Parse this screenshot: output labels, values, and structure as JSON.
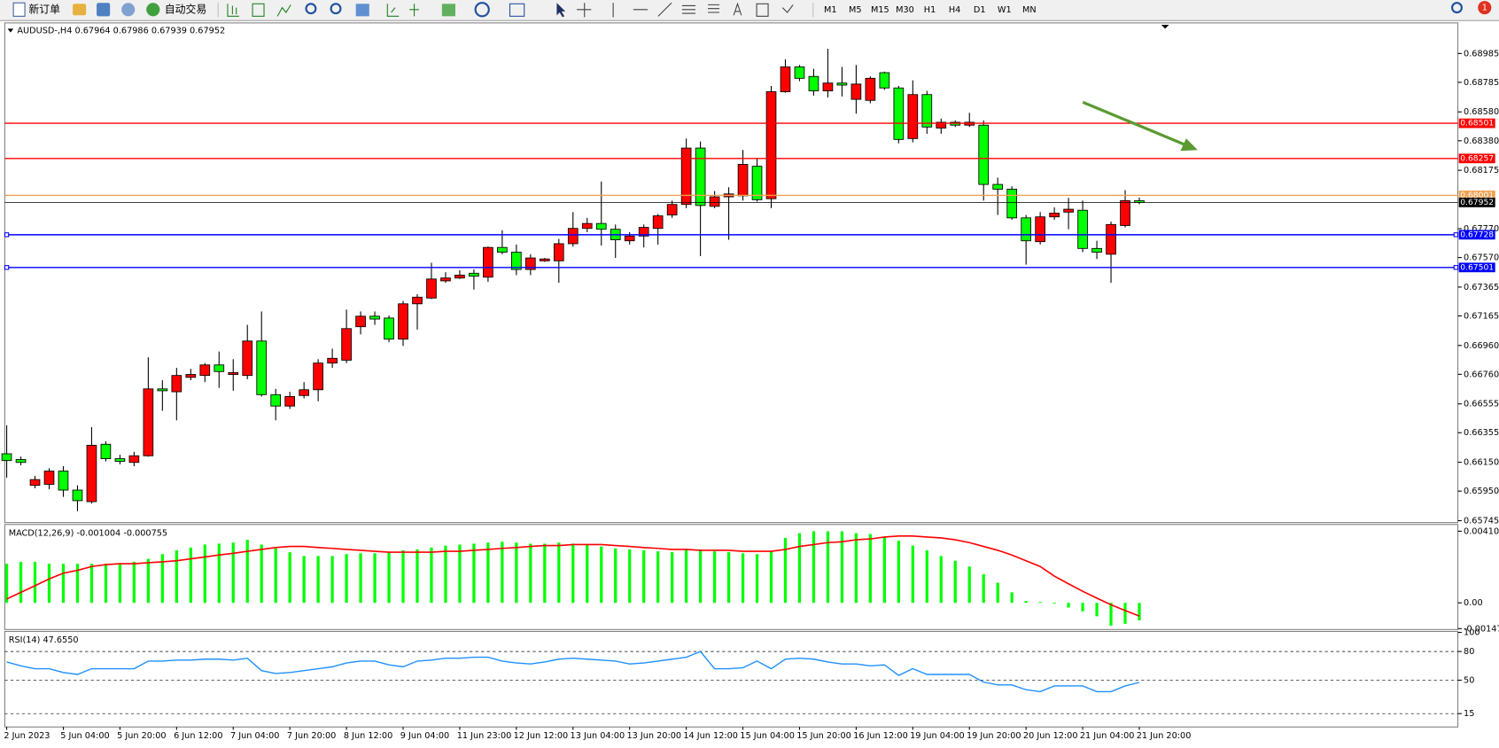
{
  "toolbar": {
    "new_order": "新订单",
    "auto_trade": "自动交易",
    "timeframes": [
      "M1",
      "M5",
      "M15",
      "M30",
      "H1",
      "H4",
      "D1",
      "W1",
      "MN"
    ],
    "notifications": 1
  },
  "chart_data": [
    {
      "type": "candlestick",
      "title": "AUDUSD-,H4",
      "categories": [
        "2 Jun 2023",
        null,
        null,
        null,
        "5 Jun 04:00",
        null,
        null,
        null,
        "5 Jun 20:00",
        null,
        null,
        null,
        "6 Jun 12:00",
        null,
        null,
        null,
        "7 Jun 04:00",
        null,
        null,
        null,
        "7 Jun 20:00",
        null,
        null,
        null,
        "8 Jun 12:00",
        null,
        null,
        null,
        "9 Jun 04:00",
        null,
        null,
        null,
        "11 Jun 23:00",
        null,
        null,
        null,
        "12 Jun 12:00",
        null,
        null,
        null,
        "13 Jun 04:00",
        null,
        null,
        null,
        "13 Jun 20:00",
        null,
        null,
        null,
        "14 Jun 12:00",
        null,
        null,
        null,
        "15 Jun 04:00",
        null,
        null,
        null,
        "15 Jun 20:00",
        null,
        null,
        null,
        "16 Jun 12:00",
        null,
        null,
        null,
        "19 Jun 04:00",
        null,
        null,
        null,
        "19 Jun 20:00",
        null,
        null,
        null,
        "20 Jun 12:00",
        null,
        null,
        null,
        "21 Jun 04:00",
        null,
        null,
        null,
        "21 Jun 20:00"
      ],
      "open": [
        0.66209,
        0.66169,
        0.6599,
        0.65997,
        0.66089,
        0.65957,
        0.65877,
        0.66275,
        0.66175,
        0.66149,
        0.66195,
        0.66659,
        0.66639,
        0.66739,
        0.66752,
        0.66825,
        0.66759,
        0.66752,
        0.66991,
        0.66619,
        0.6654,
        0.66613,
        0.66653,
        0.66838,
        0.66858,
        0.6709,
        0.67163,
        0.6715,
        0.67004,
        0.67249,
        0.67289,
        0.67408,
        0.67428,
        0.67461,
        0.67434,
        0.6764,
        0.67607,
        0.67487,
        0.67547,
        0.67547,
        0.67666,
        0.67772,
        0.67806,
        0.67766,
        0.67686,
        0.67719,
        0.67772,
        0.67865,
        0.67938,
        0.68329,
        0.67925,
        0.67991,
        0.67998,
        0.68203,
        0.67978,
        0.6872,
        0.68892,
        0.68826,
        0.68726,
        0.6878,
        0.68667,
        0.6866,
        0.68852,
        0.68746,
        0.68395,
        0.687,
        0.68468,
        0.68508,
        0.68488,
        0.68488,
        0.68077,
        0.68044,
        0.67845,
        0.6768,
        0.67852,
        0.67885,
        0.67898,
        0.67633,
        0.67593,
        0.67792,
        0.67964
      ],
      "high": [
        0.66407,
        0.66189,
        0.66056,
        0.66109,
        0.66123,
        0.6599,
        0.66394,
        0.66295,
        0.66202,
        0.66222,
        0.66878,
        0.66719,
        0.66805,
        0.66798,
        0.66838,
        0.66918,
        0.66865,
        0.67103,
        0.67196,
        0.66659,
        0.66639,
        0.66706,
        0.66865,
        0.66938,
        0.67209,
        0.67196,
        0.67196,
        0.67169,
        0.67269,
        0.67315,
        0.67534,
        0.67468,
        0.67481,
        0.67487,
        0.67646,
        0.67759,
        0.6766,
        0.67593,
        0.67567,
        0.67699,
        0.67885,
        0.67845,
        0.68097,
        0.67799,
        0.67746,
        0.67799,
        0.67872,
        0.67965,
        0.68395,
        0.68375,
        0.68031,
        0.68057,
        0.68316,
        0.68256,
        0.6876,
        0.68945,
        0.68905,
        0.68879,
        0.69018,
        0.68892,
        0.68905,
        0.68826,
        0.68859,
        0.6876,
        0.68799,
        0.68726,
        0.68534,
        0.68521,
        0.68574,
        0.68521,
        0.68124,
        0.68064,
        0.67865,
        0.67885,
        0.67918,
        0.67984,
        0.67965,
        0.67686,
        0.67819,
        0.68037,
        0.67986
      ],
      "low": [
        0.66043,
        0.66129,
        0.6597,
        0.65963,
        0.6591,
        0.65811,
        0.65864,
        0.66156,
        0.66136,
        0.66123,
        0.66189,
        0.66507,
        0.66441,
        0.66719,
        0.66706,
        0.66666,
        0.66646,
        0.66726,
        0.66606,
        0.66441,
        0.6652,
        0.66593,
        0.66573,
        0.66805,
        0.66838,
        0.67037,
        0.67103,
        0.66984,
        0.66957,
        0.6707,
        0.67282,
        0.67395,
        0.67421,
        0.67348,
        0.67401,
        0.67593,
        0.67448,
        0.67448,
        0.6754,
        0.67395,
        0.67646,
        0.67746,
        0.67653,
        0.67567,
        0.6766,
        0.6764,
        0.6766,
        0.67845,
        0.67912,
        0.6758,
        0.67912,
        0.67693,
        0.67965,
        0.67958,
        0.67912,
        0.68713,
        0.68793,
        0.68693,
        0.6868,
        0.68687,
        0.68568,
        0.6864,
        0.68733,
        0.68362,
        0.68369,
        0.68428,
        0.68428,
        0.68475,
        0.68475,
        0.67965,
        0.67865,
        0.67832,
        0.67521,
        0.6766,
        0.67832,
        0.67766,
        0.67607,
        0.6756,
        0.67395,
        0.67779,
        0.67939
      ],
      "close": [
        0.66162,
        0.66149,
        0.6603,
        0.66089,
        0.65957,
        0.65884,
        0.66268,
        0.66175,
        0.66156,
        0.66195,
        0.66659,
        0.66646,
        0.66752,
        0.66759,
        0.66825,
        0.66779,
        0.66772,
        0.66991,
        0.66619,
        0.6654,
        0.66606,
        0.66653,
        0.66838,
        0.66871,
        0.67077,
        0.67163,
        0.67143,
        0.67004,
        0.67249,
        0.67295,
        0.67421,
        0.67428,
        0.67448,
        0.67441,
        0.6764,
        0.67607,
        0.67487,
        0.67567,
        0.6756,
        0.67666,
        0.67772,
        0.67806,
        0.67766,
        0.67693,
        0.67719,
        0.67779,
        0.67859,
        0.67938,
        0.68329,
        0.67931,
        0.67991,
        0.68011,
        0.68216,
        0.67971,
        0.6872,
        0.68892,
        0.68813,
        0.68726,
        0.6878,
        0.68766,
        0.68773,
        0.68813,
        0.68746,
        0.68389,
        0.687,
        0.68475,
        0.68508,
        0.68488,
        0.68508,
        0.68077,
        0.68044,
        0.67845,
        0.67686,
        0.67852,
        0.67878,
        0.67905,
        0.67633,
        0.67607,
        0.67799,
        0.67965,
        0.67952
      ],
      "up_color": "#ff0000",
      "down_color": "#00ff00",
      "ylim": [
        0.65732,
        0.69197
      ],
      "yticks": [
        0.68985,
        0.68785,
        {
          "value": 0.6858,
          "label": "0.68580"
        },
        {
          "value": 0.6838,
          "label": "0.68380"
        },
        0.68175,
        {
          "value": 0.6777,
          "label": "0.67770"
        },
        {
          "value": 0.6757,
          "label": "0.67570"
        },
        0.67365,
        0.67165,
        {
          "value": 0.6696,
          "label": "0.66960"
        },
        {
          "value": 0.6676,
          "label": "0.66760"
        },
        0.66555,
        0.66355,
        {
          "value": 0.6615,
          "label": "0.66150"
        },
        {
          "value": 0.6595,
          "label": "0.65950"
        },
        0.65745
      ],
      "levels": [
        {
          "value": 0.68501,
          "color": "#ff0000"
        },
        {
          "value": 0.68257,
          "color": "#ff0000"
        },
        {
          "value": 0.68001,
          "color": "#f0a050"
        },
        {
          "value": 0.67728,
          "color": "#0000ff"
        },
        {
          "value": 0.67501,
          "color": "#0000ff"
        }
      ],
      "last_price_color": "#000000"
    },
    {
      "type": "macd",
      "title": "MACD(12,26,9)",
      "histogram_color": "#00ff00",
      "histogram": [
        0.00224,
        0.00235,
        0.00235,
        0.00224,
        0.00224,
        0.00224,
        0.00224,
        0.00224,
        0.00224,
        0.00235,
        0.00252,
        0.00279,
        0.00301,
        0.00317,
        0.00334,
        0.00339,
        0.00345,
        0.00361,
        0.00334,
        0.00312,
        0.0029,
        0.00268,
        0.00268,
        0.00268,
        0.00279,
        0.00284,
        0.00284,
        0.0029,
        0.00301,
        0.00306,
        0.00317,
        0.00328,
        0.00334,
        0.00339,
        0.00345,
        0.0035,
        0.00345,
        0.00339,
        0.00339,
        0.00345,
        0.00339,
        0.00334,
        0.00323,
        0.00312,
        0.00306,
        0.00301,
        0.00295,
        0.0029,
        0.00306,
        0.00306,
        0.00295,
        0.0029,
        0.00284,
        0.00279,
        0.00295,
        0.00372,
        0.00399,
        0.0041,
        0.0041,
        0.0041,
        0.00399,
        0.00394,
        0.00377,
        0.00356,
        0.00328,
        0.00301,
        0.00268,
        0.00241,
        0.00208,
        0.00164,
        0.00115,
        0.0006,
        0.00011,
        5e-05,
        -5e-05,
        -0.00027,
        -0.00049,
        -0.00077,
        -0.00131,
        -0.0012,
        -0.001004
      ],
      "signal_color": "#ff0000",
      "signal": [
        0.00022,
        0.0006,
        0.00098,
        0.00137,
        0.0017,
        0.00186,
        0.00208,
        0.00219,
        0.00224,
        0.00224,
        0.0023,
        0.00235,
        0.00241,
        0.00252,
        0.00263,
        0.00274,
        0.00284,
        0.00295,
        0.00306,
        0.00317,
        0.00323,
        0.00323,
        0.00317,
        0.00312,
        0.00306,
        0.00301,
        0.00295,
        0.0029,
        0.0029,
        0.0029,
        0.0029,
        0.00295,
        0.00295,
        0.00301,
        0.00306,
        0.00312,
        0.00317,
        0.00323,
        0.00328,
        0.00328,
        0.00334,
        0.00334,
        0.00334,
        0.00328,
        0.00323,
        0.00317,
        0.00312,
        0.00306,
        0.00306,
        0.00301,
        0.00301,
        0.00301,
        0.00295,
        0.00295,
        0.00295,
        0.00306,
        0.00323,
        0.00334,
        0.00345,
        0.0035,
        0.00361,
        0.00366,
        0.00377,
        0.00383,
        0.00383,
        0.00377,
        0.00372,
        0.00361,
        0.00345,
        0.00323,
        0.00301,
        0.00274,
        0.00241,
        0.00208,
        0.00153,
        0.00109,
        0.00066,
        0.00027,
        -0.00011,
        -0.00044,
        -0.000755
      ],
      "ylim": [
        -0.00153,
        0.00449
      ],
      "yticks": [
        0.004103,
        {
          "value": 0,
          "label": "0.00"
        },
        -0.001477
      ]
    },
    {
      "type": "line",
      "title": "RSI(14)",
      "color": "#1e90ff",
      "values": [
        69,
        65,
        62,
        62,
        58,
        56,
        62,
        62,
        62,
        62,
        70,
        70,
        71,
        71,
        72,
        72,
        71,
        73,
        60,
        57,
        58,
        60,
        62,
        64,
        68,
        70,
        70,
        66,
        64,
        70,
        71,
        73,
        73,
        74,
        74,
        70,
        68,
        67,
        69,
        72,
        73,
        72,
        71,
        70,
        67,
        68,
        70,
        72,
        74,
        80,
        62,
        62,
        63,
        70,
        62,
        72,
        73,
        72,
        69,
        67,
        67,
        65,
        66,
        55,
        62,
        56,
        56,
        56,
        56,
        48,
        45,
        45,
        40,
        38,
        44,
        44,
        44,
        38,
        38,
        44,
        47.655
      ],
      "value_labels": [
        null,
        null,
        null,
        null,
        null,
        null,
        null,
        null,
        null,
        null,
        null,
        null,
        null,
        null,
        null,
        null,
        null,
        null,
        null,
        null,
        null,
        null,
        null,
        null,
        null,
        null,
        null,
        null,
        null,
        null,
        null,
        null,
        null,
        null,
        null,
        null,
        null,
        null,
        null,
        null,
        null,
        null,
        null,
        null,
        null,
        null,
        null,
        null,
        null,
        null,
        null,
        null,
        null,
        null,
        null,
        null,
        null,
        null,
        null,
        null,
        null,
        null,
        null,
        null,
        null,
        null,
        null,
        null,
        null,
        null,
        null,
        null,
        null,
        null,
        null,
        null,
        null,
        null,
        null,
        null,
        "47.6550"
      ],
      "ylim": [
        0,
        100
      ],
      "yticks": [
        100,
        80,
        50,
        15
      ],
      "grid": "dashed"
    }
  ]
}
